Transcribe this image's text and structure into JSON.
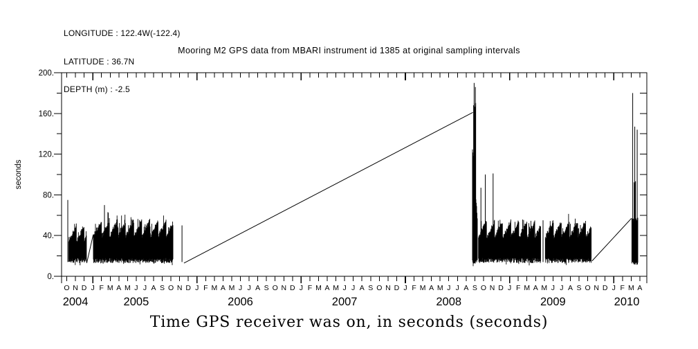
{
  "header": {
    "longitude": "LONGITUDE : 122.4W(-122.4)",
    "latitude": "LATITUDE : 36.7N",
    "depth": "DEPTH (m) : -2.5"
  },
  "title": "Mooring M2 GPS data from MBARI instrument id 1385 at original sampling intervals",
  "colors": {
    "foreground": "#000000",
    "background": "#ffffff"
  },
  "chart_data": {
    "type": "line",
    "title": "Mooring M2 GPS data from MBARI instrument id 1385 at original sampling intervals",
    "xlabel": "Time GPS receiver was on, in seconds (seconds)",
    "ylabel": "seconds",
    "ylim": [
      0,
      200
    ],
    "ytick_interval_minor": 20,
    "yticks": [
      {
        "v": 0,
        "label": "0."
      },
      {
        "v": 40,
        "label": "40."
      },
      {
        "v": 80,
        "label": "80."
      },
      {
        "v": 120,
        "label": "120."
      },
      {
        "v": 160,
        "label": "160."
      },
      {
        "v": 200,
        "label": "200."
      }
    ],
    "x_range_months": [
      "Oct 2004",
      "Apr 2010"
    ],
    "month_letters": [
      "O",
      "N",
      "D",
      "J",
      "F",
      "M",
      "A",
      "M",
      "J",
      "J",
      "A",
      "S",
      "O",
      "N",
      "D",
      "J",
      "F",
      "M",
      "A",
      "M",
      "J",
      "J",
      "A",
      "S",
      "O",
      "N",
      "D",
      "J",
      "F",
      "M",
      "A",
      "M",
      "J",
      "J",
      "A",
      "S",
      "O",
      "N",
      "D",
      "J",
      "F",
      "M",
      "A",
      "M",
      "J",
      "J",
      "A",
      "S",
      "O",
      "N",
      "D",
      "J",
      "F",
      "M",
      "A",
      "M",
      "J",
      "J",
      "A",
      "S",
      "O",
      "N",
      "D",
      "J",
      "F",
      "M",
      "A"
    ],
    "year_labels": [
      {
        "label": "2004",
        "m": 1
      },
      {
        "label": "2005",
        "m": 8
      },
      {
        "label": "2006",
        "m": 20
      },
      {
        "label": "2007",
        "m": 32
      },
      {
        "label": "2008",
        "m": 44
      },
      {
        "label": "2009",
        "m": 56
      },
      {
        "label": "2010",
        "m": 64.5
      }
    ],
    "grid": false,
    "legend": false,
    "series_units": "seconds",
    "segments": [
      {
        "type": "spike",
        "m": 0.12,
        "v": 75
      },
      {
        "type": "band",
        "m0": 0.22,
        "m1": 2.27,
        "base": 15,
        "top": 50,
        "tooth": 0.9
      },
      {
        "type": "line",
        "points": [
          [
            2.3,
            13
          ],
          [
            3.05,
            41
          ]
        ]
      },
      {
        "type": "band",
        "m0": 3.07,
        "m1": 12.25,
        "base": 15,
        "top": 55,
        "tooth": 0.93
      },
      {
        "type": "spike",
        "m": 4.34,
        "v": 70
      },
      {
        "type": "spike",
        "m": 4.74,
        "v": 63
      },
      {
        "type": "spike",
        "m": 13.27,
        "v": 50
      },
      {
        "type": "line",
        "points": [
          [
            13.5,
            13
          ],
          [
            46.78,
            161
          ]
        ]
      },
      {
        "type": "band",
        "m0": 46.73,
        "m1": 47.3,
        "base": 14,
        "top0": 125,
        "top1": 58
      },
      {
        "type": "band",
        "m0": 46.86,
        "m1": 47.1,
        "base": 14,
        "top": 168
      },
      {
        "type": "spike",
        "m": 46.92,
        "v": 190
      },
      {
        "type": "spike",
        "m": 47.06,
        "v": 186
      },
      {
        "type": "band",
        "m0": 47.42,
        "m1": 54.6,
        "base": 15,
        "top": 54,
        "tooth": 0.93
      },
      {
        "type": "spike",
        "m": 47.7,
        "v": 87
      },
      {
        "type": "spike",
        "m": 48.2,
        "v": 100
      },
      {
        "type": "spike",
        "m": 49.1,
        "v": 101
      },
      {
        "type": "spike",
        "m": 54.86,
        "v": 55
      },
      {
        "type": "band",
        "m0": 55.12,
        "m1": 60.42,
        "base": 15,
        "top": 54,
        "tooth": 0.93
      },
      {
        "type": "line",
        "points": [
          [
            60.5,
            15
          ],
          [
            65.05,
            57
          ]
        ]
      },
      {
        "type": "band",
        "m0": 65.09,
        "m1": 65.81,
        "base": 13,
        "top": 55
      },
      {
        "type": "band",
        "m0": 65.35,
        "m1": 65.55,
        "base": 13,
        "top": 92
      },
      {
        "type": "spike",
        "m": 65.18,
        "v": 180
      },
      {
        "type": "spike",
        "m": 65.42,
        "v": 147
      },
      {
        "type": "spike",
        "m": 65.7,
        "v": 144
      }
    ]
  }
}
